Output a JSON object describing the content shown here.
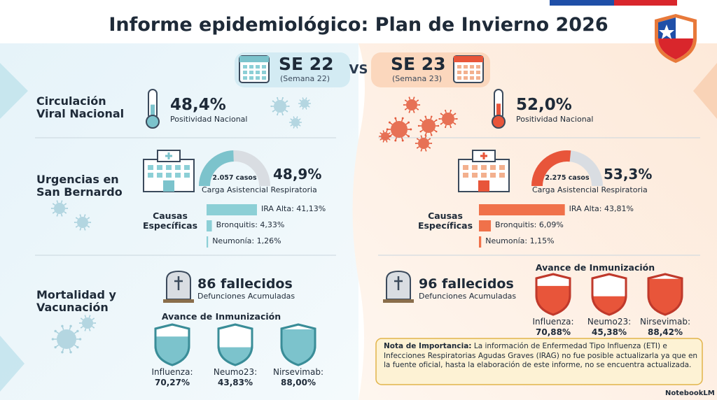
{
  "title": "Informe epidemiológico: Plan de Invierno 2026",
  "vs": "VS",
  "footer": "NotebookLM",
  "rows": [
    "Circulación Viral Nacional",
    "Urgencias en San Bernardo",
    "Mortalidad y Vacunación"
  ],
  "weeks": [
    {
      "week": "SE 22",
      "week_sub": "(Semana 22)",
      "positivity": {
        "value": 48.4,
        "label": "48,4%",
        "caption": "Positividad Nacional"
      },
      "load": {
        "cases": "2.057 casos",
        "value": 48.9,
        "label": "48,9%",
        "caption": "Carga Asistencial Respiratoria"
      },
      "causes_title": "Causas Específicas",
      "causes": [
        {
          "label": "IRA Alta: 41,13%",
          "value": 41.13
        },
        {
          "label": "Bronquitis: 4,33%",
          "value": 4.33
        },
        {
          "label": "Neumonía: 1,26%",
          "value": 1.26
        }
      ],
      "deaths": {
        "label": "86 fallecidos",
        "caption": "Defunciones Acumuladas"
      },
      "immunization_title": "Avance de Inmunización",
      "vaccines": [
        {
          "name": "Influenza:",
          "label": "70,27%",
          "value": 70.27
        },
        {
          "name": "Neumo23:",
          "label": "43,83%",
          "value": 43.83
        },
        {
          "name": "Nirsevimab:",
          "label": "88,00%",
          "value": 88.0
        }
      ]
    },
    {
      "week": "SE 23",
      "week_sub": "(Semana 23)",
      "positivity": {
        "value": 52.0,
        "label": "52,0%",
        "caption": "Positividad Nacional"
      },
      "load": {
        "cases": "2.275 casos",
        "value": 53.3,
        "label": "53,3%",
        "caption": "Carga Asistencial Respiratoria"
      },
      "causes_title": "Causas Específicas",
      "causes": [
        {
          "label": "IRA Alta: 43,81%",
          "value": 43.81
        },
        {
          "label": "Bronquitis: 6,09%",
          "value": 6.09
        },
        {
          "label": "Neumonía: 1,15%",
          "value": 1.15
        }
      ],
      "deaths": {
        "label": "96 fallecidos",
        "caption": "Defunciones Acumuladas"
      },
      "immunization_title": "Avance de Inmunización",
      "vaccines": [
        {
          "name": "Influenza:",
          "label": "70,88%",
          "value": 70.88
        },
        {
          "name": "Neumo23:",
          "label": "45,38%",
          "value": 45.38
        },
        {
          "name": "Nirsevimab:",
          "label": "88,42%",
          "value": 88.42
        }
      ]
    }
  ],
  "note": {
    "title": "Nota de Importancia:",
    "text": "La información de Enfermedad Tipo Influenza (ETI) e Infecciones Respiratorias Agudas Graves (IRAG) no fue posible actualizarla ya que en la fuente oficial, hasta la elaboración de este informe, no se encuentra actualizada."
  }
}
